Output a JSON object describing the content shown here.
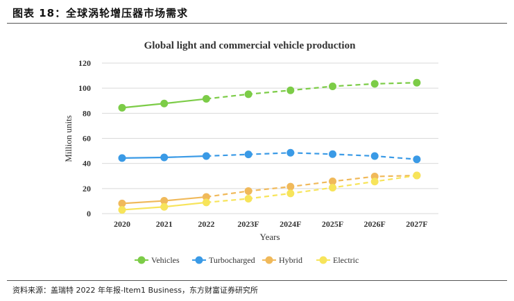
{
  "header": {
    "title": "图表 18：全球涡轮增压器市场需求"
  },
  "footer": {
    "source": "资料来源：盖瑞特 2022 年年报-Item1 Business，东方财富证券研究所"
  },
  "chart_data": {
    "type": "line",
    "title": "Global light and commercial vehicle production",
    "xlabel": "Years",
    "ylabel": "Million units",
    "ylim": [
      0,
      120
    ],
    "yticks": [
      0,
      20,
      40,
      60,
      80,
      100,
      120
    ],
    "grid": true,
    "legend_position": "bottom",
    "categories": [
      "2020",
      "2021",
      "2022",
      "2023F",
      "2024F",
      "2025F",
      "2026F",
      "2027F"
    ],
    "forecast_start_index": 2,
    "series": [
      {
        "name": "Vehicles",
        "color": "#7ccc47",
        "values": [
          84.4,
          87.8,
          91.5,
          95.2,
          98.3,
          101.5,
          103.5,
          104.4
        ]
      },
      {
        "name": "Turbocharged",
        "color": "#3a9ae6",
        "values": [
          44.3,
          44.8,
          45.9,
          47.2,
          48.5,
          47.4,
          45.9,
          43.3
        ]
      },
      {
        "name": "Hybrid",
        "color": "#f0b95a",
        "values": [
          8.1,
          10.2,
          13.3,
          18.0,
          21.5,
          25.7,
          29.6,
          30.4
        ]
      },
      {
        "name": "Electric",
        "color": "#f7e45a",
        "values": [
          3.0,
          5.4,
          8.9,
          11.9,
          16.1,
          20.7,
          25.6,
          30.4
        ]
      }
    ]
  }
}
